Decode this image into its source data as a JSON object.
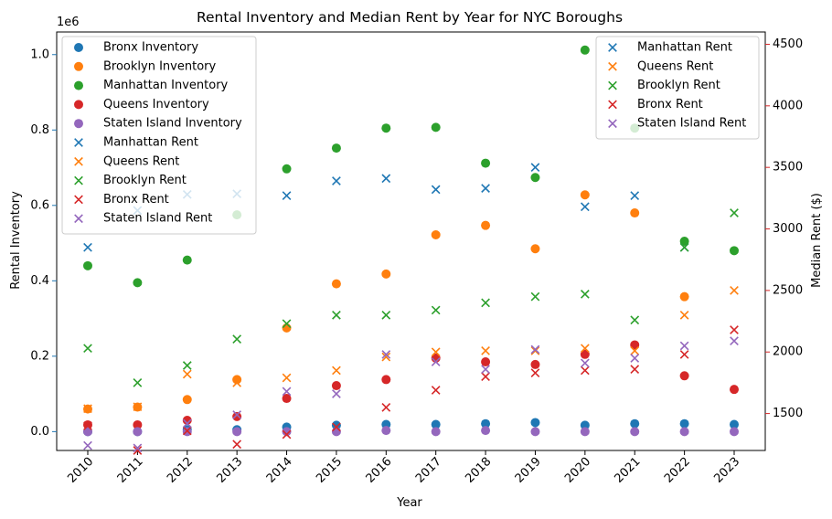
{
  "chart_data": {
    "type": "scatter",
    "title": "Rental Inventory and Median Rent by Year for NYC Boroughs",
    "xlabel": "Year",
    "ylabel_left": "Rental Inventory",
    "ylabel_right": "Median Rent ($)",
    "left_offset_label": "1e6",
    "x_categories": [
      "2010",
      "2011",
      "2012",
      "2013",
      "2014",
      "2015",
      "2016",
      "2017",
      "2018",
      "2019",
      "2020",
      "2021",
      "2022",
      "2023"
    ],
    "left_axis": {
      "ylim": [
        -0.05,
        1.06
      ],
      "ticks": [
        0.0,
        0.2,
        0.4,
        0.6,
        0.8,
        1.0
      ],
      "tick_labels": [
        "0.0",
        "0.2",
        "0.4",
        "0.6",
        "0.8",
        "1.0"
      ],
      "color": "#1f77b4"
    },
    "right_axis": {
      "ylim": [
        1200,
        4600
      ],
      "ticks": [
        1500,
        2000,
        2500,
        3000,
        3500,
        4000,
        4500
      ],
      "tick_labels": [
        "1500",
        "2000",
        "2500",
        "3000",
        "3500",
        "4000",
        "4500"
      ],
      "color": "#d62728"
    },
    "grid": false,
    "inventory_series": [
      {
        "name": "Bronx Inventory",
        "color": "#1f77b4",
        "axis": "left",
        "marker": "circle",
        "values": [
          0.0,
          0.0,
          0.005,
          0.005,
          0.012,
          0.017,
          0.019,
          0.019,
          0.021,
          0.024,
          0.017,
          0.021,
          0.021,
          0.019
        ]
      },
      {
        "name": "Brooklyn Inventory",
        "color": "#ff7f0e",
        "axis": "left",
        "marker": "circle",
        "values": [
          0.06,
          0.065,
          0.085,
          0.138,
          0.275,
          0.392,
          0.418,
          0.522,
          0.547,
          0.485,
          0.628,
          0.58,
          0.358,
          null
        ]
      },
      {
        "name": "Manhattan Inventory",
        "color": "#2ca02c",
        "axis": "left",
        "marker": "circle",
        "values": [
          0.44,
          0.395,
          0.455,
          0.575,
          0.697,
          0.752,
          0.805,
          0.807,
          0.712,
          0.674,
          1.012,
          0.805,
          0.505,
          0.48
        ]
      },
      {
        "name": "Queens Inventory",
        "color": "#d62728",
        "axis": "left",
        "marker": "circle",
        "values": [
          0.018,
          0.018,
          0.03,
          0.04,
          0.088,
          0.122,
          0.138,
          0.195,
          0.185,
          0.178,
          0.205,
          0.23,
          0.148,
          0.112
        ]
      },
      {
        "name": "Staten Island Inventory",
        "color": "#9467bd",
        "axis": "left",
        "marker": "circle",
        "values": [
          0.0,
          0.0,
          0.0,
          0.0,
          0.0,
          0.0,
          0.003,
          0.0,
          0.003,
          0.0,
          0.0,
          0.0,
          0.0,
          0.0
        ]
      }
    ],
    "rent_series": [
      {
        "name": "Manhattan Rent",
        "color": "#1f77b4",
        "axis": "right",
        "marker": "x",
        "values": [
          2850,
          3150,
          3280,
          3285,
          3270,
          3390,
          3410,
          3320,
          3330,
          3500,
          3180,
          3270,
          2850,
          null
        ]
      },
      {
        "name": "Queens Rent",
        "color": "#ff7f0e",
        "axis": "right",
        "marker": "x",
        "values": [
          1540,
          1555,
          1820,
          1750,
          1790,
          1850,
          1960,
          2000,
          2010,
          2010,
          2030,
          2010,
          2300,
          2500
        ]
      },
      {
        "name": "Brooklyn Rent",
        "color": "#2ca02c",
        "axis": "right",
        "marker": "x",
        "values": [
          2030,
          1750,
          1890,
          2105,
          2230,
          2300,
          2300,
          2340,
          2400,
          2450,
          2470,
          2260,
          2850,
          3130
        ]
      },
      {
        "name": "Bronx Rent",
        "color": "#d62728",
        "axis": "right",
        "marker": "x",
        "values": [
          1400,
          1200,
          1360,
          1250,
          1330,
          1390,
          1550,
          1690,
          1800,
          1830,
          1850,
          1860,
          1980,
          2180
        ]
      },
      {
        "name": "Staten Island Rent",
        "color": "#9467bd",
        "axis": "right",
        "marker": "x",
        "values": [
          1240,
          1220,
          1420,
          1490,
          1680,
          1660,
          1980,
          1920,
          1860,
          2020,
          1910,
          1950,
          2050,
          2090
        ]
      }
    ],
    "legend_left_placement": "upper-left",
    "legend_right_placement": "upper-right"
  }
}
